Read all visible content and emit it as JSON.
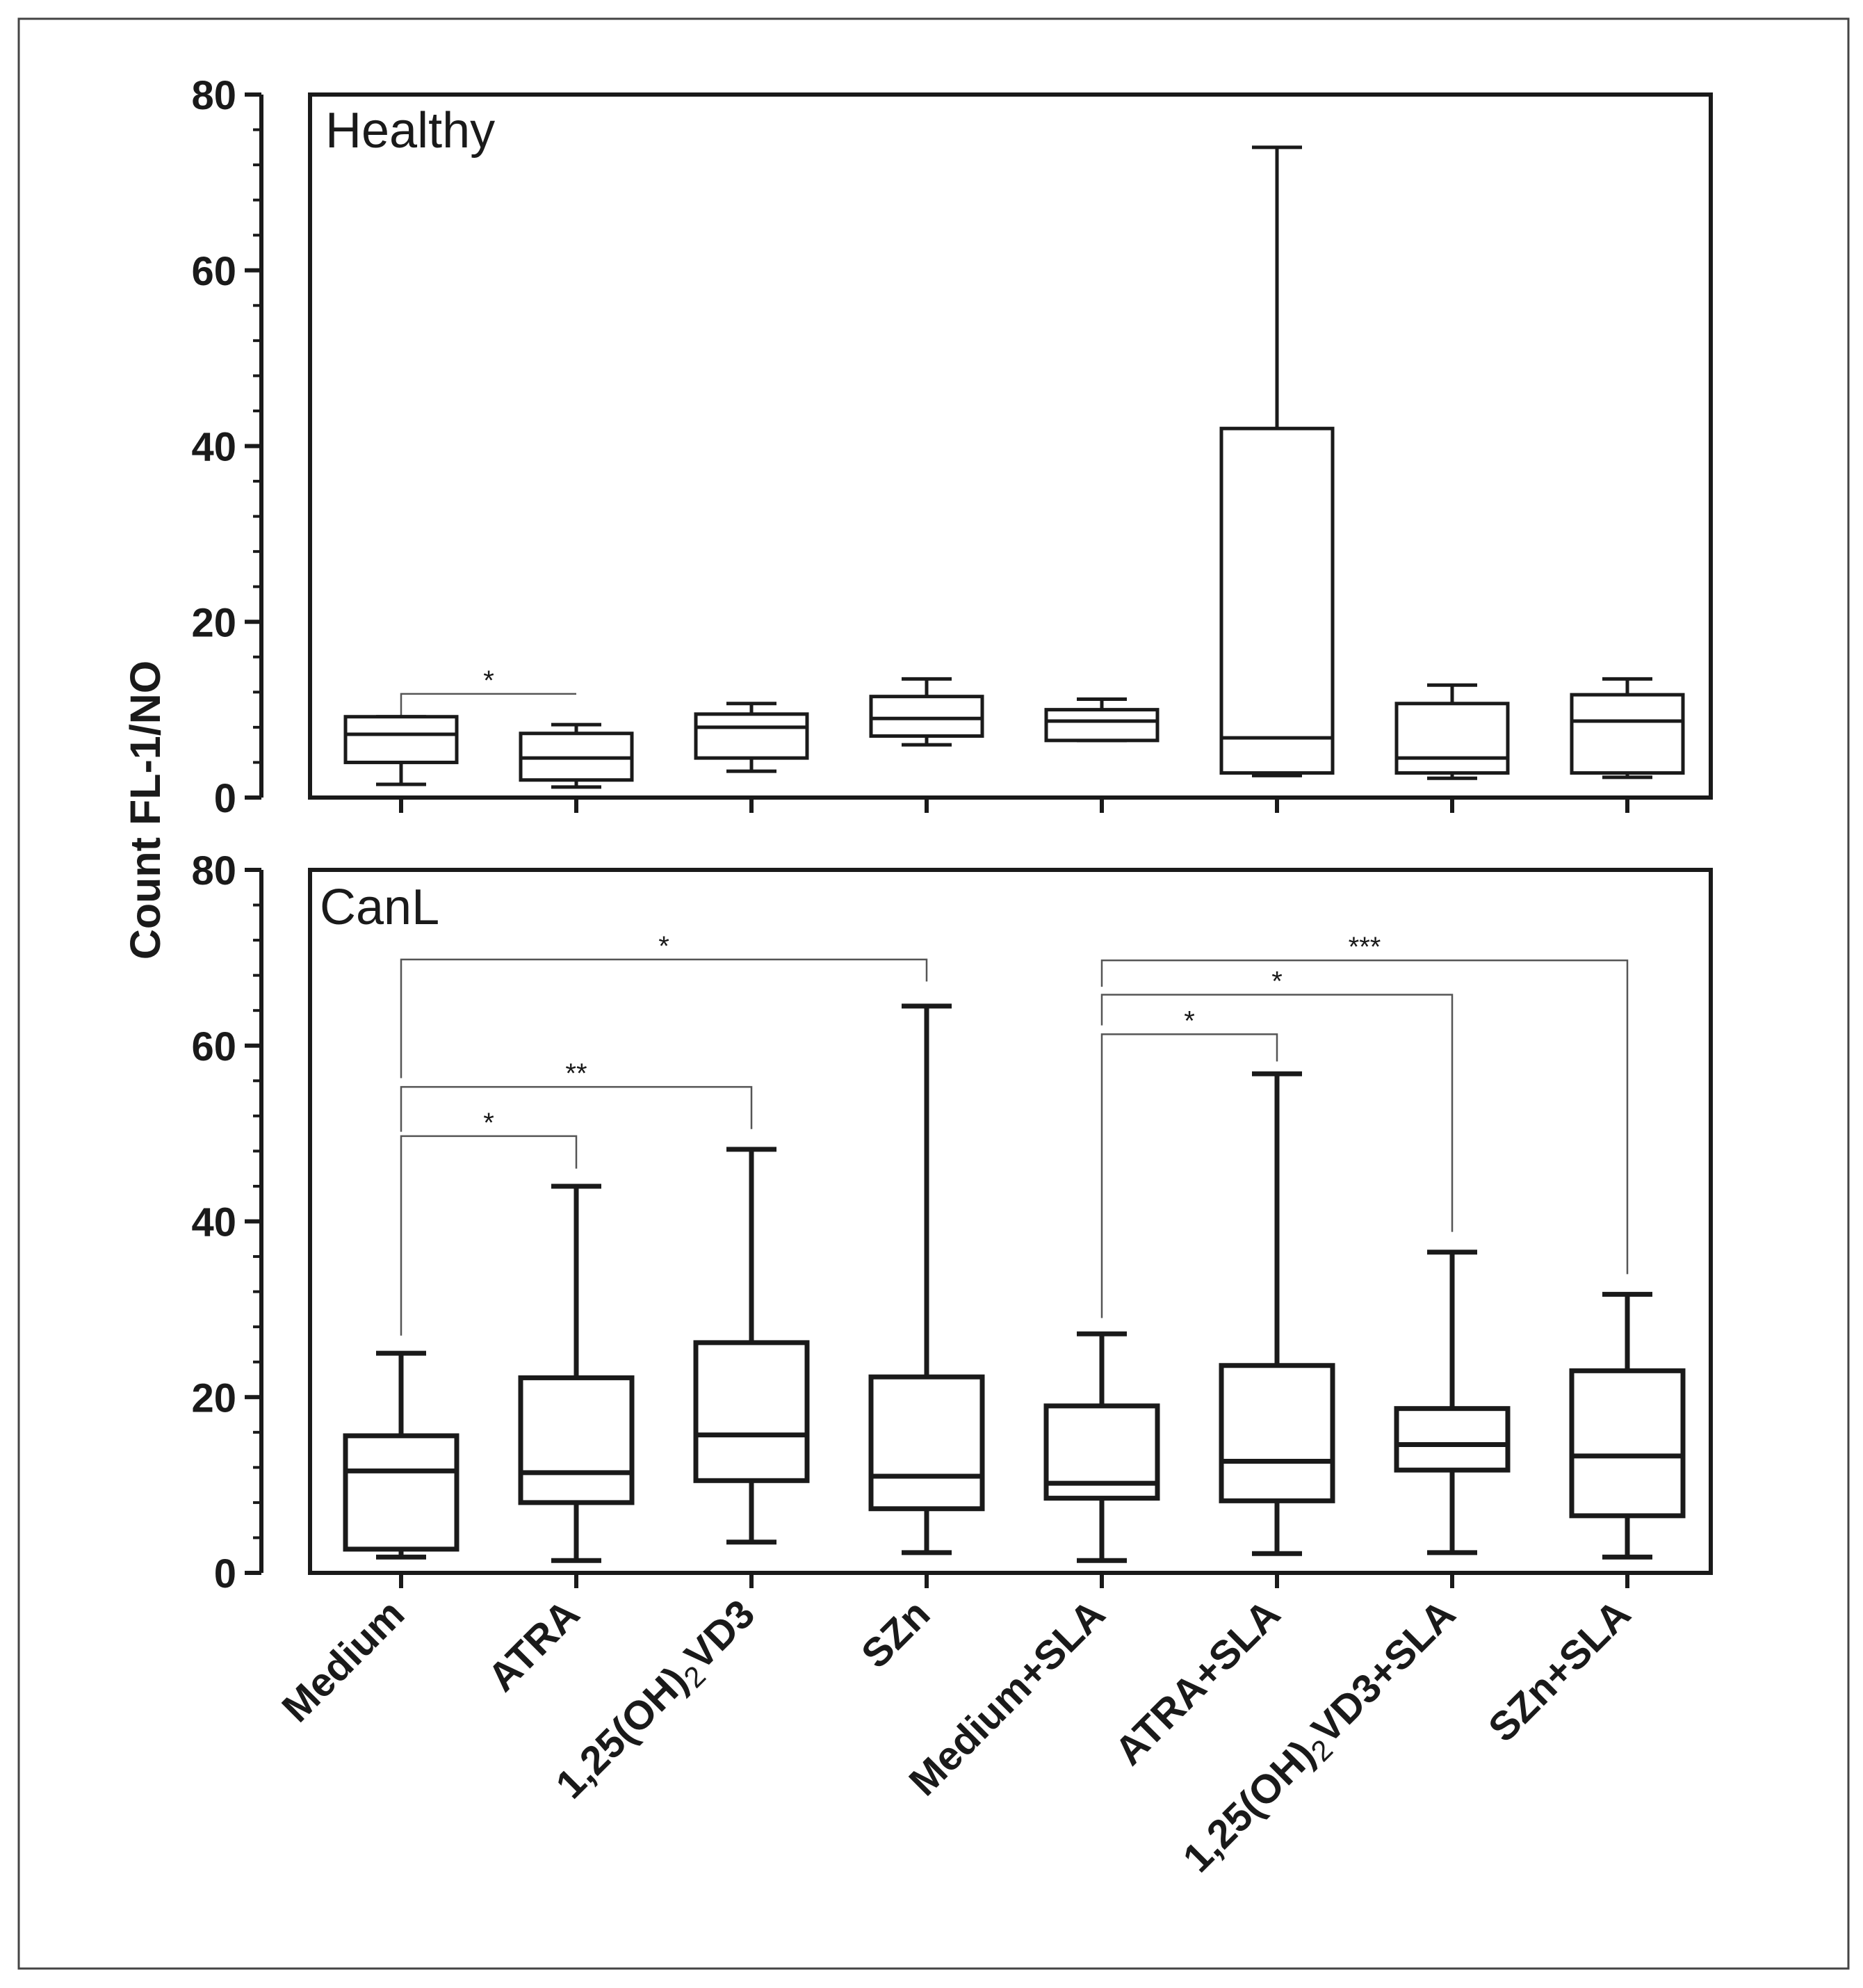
{
  "colors": {
    "ink": "#1a1a1a",
    "bracket": "#555555",
    "frame": "#444444",
    "background": "#ffffff"
  },
  "chart_data": {
    "type": "box",
    "ylabel": "Count FL-1/NO",
    "ylim": [
      0,
      80
    ],
    "y_ticks": [
      "0",
      "20",
      "40",
      "60",
      "80"
    ],
    "categories": [
      {
        "base": "Medium",
        "sub": "",
        "rest": ""
      },
      {
        "base": "ATRA",
        "sub": "",
        "rest": ""
      },
      {
        "base": "1,25(OH)",
        "sub": "2",
        "rest": "VD3"
      },
      {
        "base": "SZn",
        "sub": "",
        "rest": ""
      },
      {
        "base": "Medium+SLA",
        "sub": "",
        "rest": ""
      },
      {
        "base": "ATRA+SLA",
        "sub": "",
        "rest": ""
      },
      {
        "base": "1,25(OH)",
        "sub": "2",
        "rest": "VD3+SLA"
      },
      {
        "base": "SZn+SLA",
        "sub": "",
        "rest": ""
      }
    ],
    "panels": [
      {
        "title": "Healthy",
        "boxes": [
          {
            "min": 1.5,
            "q1": 4,
            "median": 7.2,
            "q3": 9.2,
            "max": 9.2
          },
          {
            "min": 1.2,
            "q1": 2,
            "median": 4.5,
            "q3": 7.3,
            "max": 8.3
          },
          {
            "min": 3,
            "q1": 4.5,
            "median": 8,
            "q3": 9.5,
            "max": 10.7
          },
          {
            "min": 6,
            "q1": 7,
            "median": 9,
            "q3": 11.5,
            "max": 13.5
          },
          {
            "min": 6.5,
            "q1": 6.5,
            "median": 8.7,
            "q3": 10,
            "max": 11.2
          },
          {
            "min": 2.5,
            "q1": 2.8,
            "median": 6.8,
            "q3": 42,
            "max": 74
          },
          {
            "min": 2.2,
            "q1": 2.8,
            "median": 4.5,
            "q3": 10.7,
            "max": 12.8
          },
          {
            "min": 2.3,
            "q1": 2.8,
            "median": 8.7,
            "q3": 11.7,
            "max": 13.5
          }
        ],
        "comparisons": [
          {
            "from": 0,
            "to": 1,
            "label": "*",
            "level": 11.8,
            "to_level": 11.8
          }
        ]
      },
      {
        "title": "CanL",
        "boxes": [
          {
            "min": 1.8,
            "q1": 2.7,
            "median": 11.6,
            "q3": 15.6,
            "max": 25
          },
          {
            "min": 1.4,
            "q1": 8,
            "median": 11.4,
            "q3": 22.2,
            "max": 44
          },
          {
            "min": 3.5,
            "q1": 10.5,
            "median": 15.7,
            "q3": 26.2,
            "max": 48.2
          },
          {
            "min": 2.3,
            "q1": 7.3,
            "median": 11,
            "q3": 22.3,
            "max": 64.5
          },
          {
            "min": 1.4,
            "q1": 8.5,
            "median": 10.2,
            "q3": 19,
            "max": 27.2
          },
          {
            "min": 2.2,
            "q1": 8.2,
            "median": 12.7,
            "q3": 23.6,
            "max": 56.8
          },
          {
            "min": 2.3,
            "q1": 11.7,
            "median": 14.6,
            "q3": 18.7,
            "max": 36.5
          },
          {
            "min": 1.8,
            "q1": 6.5,
            "median": 13.3,
            "q3": 23,
            "max": 31.7
          }
        ],
        "comparisons": [
          {
            "from": 0,
            "to": 1,
            "label": "*",
            "level": 49.7,
            "from_level": 27,
            "to_level": 46
          },
          {
            "from": 0,
            "to": 2,
            "label": "**",
            "level": 55.3,
            "from_level": 50.2,
            "to_level": 50.5
          },
          {
            "from": 0,
            "to": 3,
            "label": "*",
            "level": 69.8,
            "from_level": 56.3,
            "to_level": 67.3
          },
          {
            "from": 4,
            "to": 5,
            "label": "*",
            "level": 61.3,
            "from_level": 29,
            "to_level": 58.2
          },
          {
            "from": 4,
            "to": 6,
            "label": "*",
            "level": 65.8,
            "from_level": 62.3,
            "to_level": 38.8
          },
          {
            "from": 4,
            "to": 7,
            "label": "***",
            "level": 69.7,
            "from_level": 66.7,
            "to_level": 34
          }
        ]
      }
    ]
  }
}
